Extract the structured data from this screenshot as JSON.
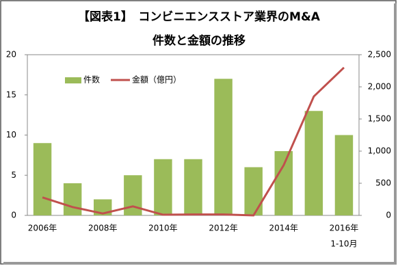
{
  "chart_data": {
    "type": "bar",
    "title": "【図表1】　コンビニエンスストア業界のM&A",
    "subtitle": "件数と金額の推移",
    "categories": [
      "2006年",
      null,
      "2008年",
      null,
      "2010年",
      null,
      "2012年",
      null,
      "2014年",
      null,
      "2016年"
    ],
    "x_note": "1-10月",
    "series": [
      {
        "name": "件数",
        "type": "bar",
        "color": "#9bbb59",
        "values": [
          9,
          4,
          2,
          5,
          7,
          7,
          17,
          6,
          8,
          13,
          10
        ]
      },
      {
        "name": "金額（億円）",
        "type": "line",
        "axis": "y2",
        "color": "#c0504d",
        "values": [
          280,
          130,
          30,
          140,
          10,
          15,
          15,
          0,
          780,
          1850,
          2300
        ]
      }
    ],
    "ylim": [
      0,
      20
    ],
    "yticks": [
      0,
      5,
      10,
      15,
      20
    ],
    "y2lim": [
      0,
      2500
    ],
    "y2ticks": [
      0,
      500,
      {
        "value": 1000,
        "label": "1,000"
      },
      {
        "value": 1500,
        "label": "1,500"
      },
      {
        "value": 2000,
        "label": "2,000"
      },
      {
        "value": 2500,
        "label": "2,500"
      }
    ]
  }
}
